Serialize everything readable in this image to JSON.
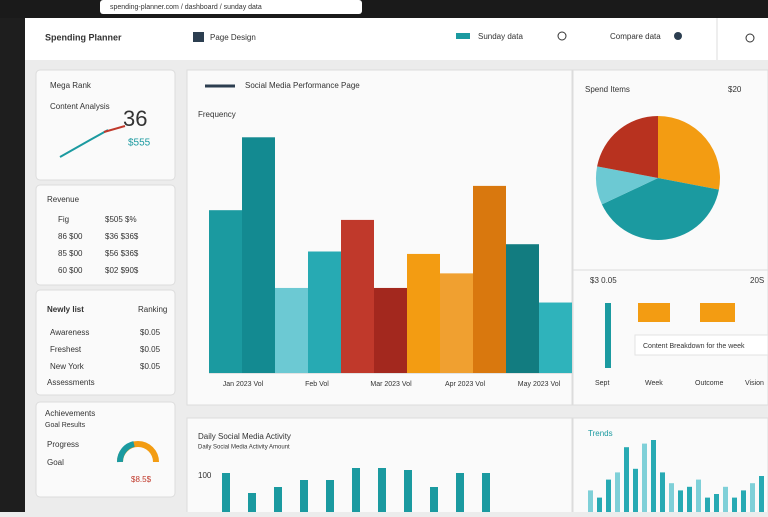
{
  "topbar": {
    "url": "spending-planner.com / dashboard / sunday data"
  },
  "header": {
    "title": "Spending Planner",
    "tab": "Page Design",
    "filter": "Sunday data",
    "menu": "Compare data"
  },
  "kpi": {
    "title": "Mega Rank",
    "subtitle": "Content Analysis",
    "value": "36",
    "sub": "$555"
  },
  "stats": {
    "title": "Revenue",
    "rows": [
      [
        "Fig",
        "$505 $%"
      ],
      [
        "86 $00",
        "$36 $36$"
      ],
      [
        "85 $00",
        "$56 $36$"
      ],
      [
        "60 $00",
        "$02 $90$"
      ]
    ]
  },
  "list": {
    "title": "Newly list",
    "action": "Ranking",
    "rows": [
      [
        "Awareness",
        "$0.05"
      ],
      [
        "Freshest",
        "$0.05"
      ],
      [
        "New York",
        "$0.05"
      ]
    ],
    "footer": "Assessments"
  },
  "gauge": {
    "title": "Achievements",
    "subtitle": "Goal Results",
    "rows": [
      "Progress",
      "Goal"
    ],
    "value": "$8.5$"
  },
  "main_chart": {
    "title": "Social Media Performance Page",
    "ylabel": "Frequency",
    "ylim": [
      0,
      100
    ],
    "values": [
      67,
      97,
      35,
      50,
      63,
      35,
      49,
      41,
      77,
      53,
      29
    ],
    "colors": [
      "#1b9aa0",
      "#138a91",
      "#6cc9d3",
      "#27aab3",
      "#c0392b",
      "#a3281e",
      "#f39c12",
      "#f0a030",
      "#d9780e",
      "#127c80",
      "#2fb3bb"
    ],
    "xlabels": [
      "Jan 2023 Vol",
      "Feb Vol",
      "Mar 2023 Vol",
      "Apr 2023 Vol",
      "May 2023 Vol"
    ]
  },
  "pie": {
    "title": "Spend Items",
    "total": "$20",
    "values": [
      28,
      40,
      10,
      22
    ],
    "colors": [
      "#f39c12",
      "#1b9aa0",
      "#6cc9d3",
      "#b8321f"
    ]
  },
  "weekly": {
    "title": "$3 0.05",
    "right": "20S",
    "values": [
      65,
      19,
      19
    ],
    "colors": [
      "#1b9aa0",
      "#f39c12",
      "#f39c12"
    ],
    "note": "Content Breakdown for the week",
    "xlabels": [
      "Sept",
      "Week",
      "Outcome",
      "Vision"
    ]
  },
  "daily": {
    "title": "Daily Social Media Activity",
    "subtitle": "Daily Social Media Activity Amount",
    "ylabel": "100",
    "ylim": [
      0,
      100
    ],
    "values": [
      78,
      38,
      50,
      64,
      64,
      88,
      88,
      84,
      50,
      78,
      78
    ]
  },
  "trends": {
    "title": "Trends",
    "ylim": [
      0,
      100
    ],
    "values": [
      30,
      20,
      45,
      55,
      90,
      60,
      95,
      100,
      55,
      40,
      30,
      35,
      45,
      20,
      25,
      35,
      20,
      30,
      40,
      50
    ]
  }
}
